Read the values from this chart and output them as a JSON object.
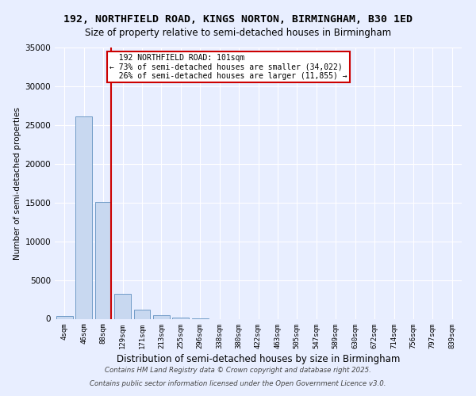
{
  "title1": "192, NORTHFIELD ROAD, KINGS NORTON, BIRMINGHAM, B30 1ED",
  "title2": "Size of property relative to semi-detached houses in Birmingham",
  "xlabel": "Distribution of semi-detached houses by size in Birmingham",
  "ylabel": "Number of semi-detached properties",
  "bin_labels": [
    "4sqm",
    "46sqm",
    "88sqm",
    "129sqm",
    "171sqm",
    "213sqm",
    "255sqm",
    "296sqm",
    "338sqm",
    "380sqm",
    "422sqm",
    "463sqm",
    "505sqm",
    "547sqm",
    "589sqm",
    "630sqm",
    "672sqm",
    "714sqm",
    "756sqm",
    "797sqm",
    "839sqm"
  ],
  "bar_values": [
    380,
    26100,
    15100,
    3200,
    1200,
    420,
    180,
    80,
    0,
    0,
    0,
    0,
    0,
    0,
    0,
    0,
    0,
    0,
    0,
    0,
    0
  ],
  "bar_color": "#c8d8f0",
  "bar_edge_color": "#6090c0",
  "property_line_bin": 2,
  "property_label": "192 NORTHFIELD ROAD: 101sqm",
  "pct_smaller": 73,
  "count_smaller": 34022,
  "pct_larger": 26,
  "count_larger": 11855,
  "red_line_color": "#cc0000",
  "ylim": [
    0,
    35000
  ],
  "yticks": [
    0,
    5000,
    10000,
    15000,
    20000,
    25000,
    30000,
    35000
  ],
  "footnote1": "Contains HM Land Registry data © Crown copyright and database right 2025.",
  "footnote2": "Contains public sector information licensed under the Open Government Licence v3.0.",
  "bg_color": "#e8eeff",
  "grid_color": "#ffffff"
}
